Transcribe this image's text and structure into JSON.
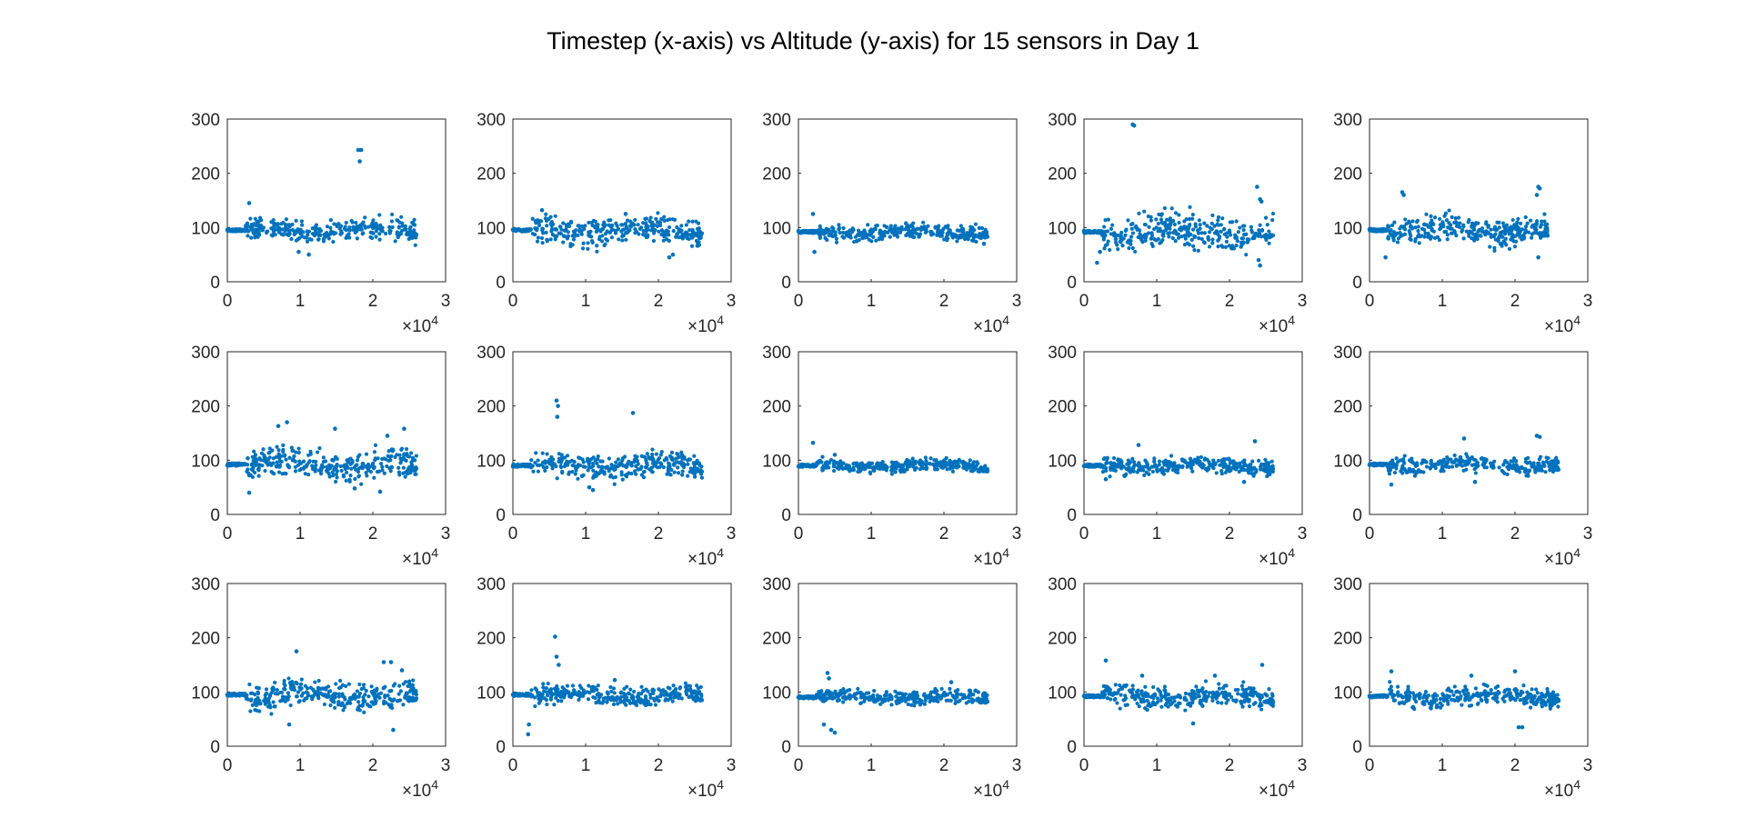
{
  "figure": {
    "title": "Timestep (x-axis) vs Altitude (y-axis) for 15 sensors in Day 1",
    "marker_color": "#0072BD",
    "axis_color": "#262626"
  },
  "chart_data": {
    "type": "scatter",
    "layout": "3x5 grid of subplots",
    "title": "Timestep (x-axis) vs Altitude (y-axis) for 15 sensors in Day 1",
    "grid": false,
    "legend": "none",
    "x_exponent_label": "×10^4",
    "xlim": [
      0,
      30000
    ],
    "ylim": [
      0,
      300
    ],
    "x_ticks": [
      0,
      1,
      2,
      3
    ],
    "y_ticks": [
      0,
      100,
      200,
      300
    ],
    "subplots": [
      {
        "x_end": 26000,
        "base": 95,
        "spread": 14,
        "outliers": [
          [
            18000,
            243
          ],
          [
            18400,
            243
          ],
          [
            18200,
            222
          ],
          [
            3000,
            145
          ],
          [
            9800,
            55
          ],
          [
            11200,
            50
          ]
        ]
      },
      {
        "x_end": 26000,
        "base": 95,
        "spread": 18,
        "outliers": [
          [
            4000,
            132
          ],
          [
            15500,
            125
          ],
          [
            22000,
            50
          ],
          [
            21500,
            45
          ]
        ]
      },
      {
        "x_end": 26000,
        "base": 92,
        "spread": 10,
        "outliers": [
          [
            2000,
            125
          ],
          [
            2200,
            55
          ],
          [
            25500,
            70
          ]
        ]
      },
      {
        "x_end": 26000,
        "base": 92,
        "spread": 22,
        "outliers": [
          [
            6700,
            290
          ],
          [
            6900,
            288
          ],
          [
            23800,
            175
          ],
          [
            24200,
            152
          ],
          [
            24400,
            148
          ],
          [
            24200,
            30
          ],
          [
            24000,
            40
          ],
          [
            1800,
            35
          ],
          [
            2200,
            55
          ]
        ]
      },
      {
        "x_end": 24500,
        "base": 95,
        "spread": 18,
        "outliers": [
          [
            4500,
            165
          ],
          [
            4700,
            160
          ],
          [
            23200,
            175
          ],
          [
            23400,
            172
          ],
          [
            23000,
            160
          ],
          [
            2200,
            45
          ],
          [
            23200,
            45
          ]
        ]
      },
      {
        "x_end": 26000,
        "base": 92,
        "spread": 20,
        "outliers": [
          [
            8200,
            170
          ],
          [
            7000,
            163
          ],
          [
            14800,
            158
          ],
          [
            22000,
            145
          ],
          [
            24300,
            158
          ],
          [
            3000,
            40
          ],
          [
            17500,
            48
          ],
          [
            21000,
            42
          ]
        ]
      },
      {
        "x_end": 26000,
        "base": 90,
        "spread": 16,
        "outliers": [
          [
            6000,
            210
          ],
          [
            6200,
            200
          ],
          [
            6100,
            180
          ],
          [
            16500,
            187
          ],
          [
            10500,
            50
          ],
          [
            11000,
            45
          ]
        ]
      },
      {
        "x_end": 26000,
        "base": 90,
        "spread": 8,
        "outliers": [
          [
            2000,
            132
          ],
          [
            5000,
            110
          ]
        ]
      },
      {
        "x_end": 26000,
        "base": 90,
        "spread": 11,
        "outliers": [
          [
            23500,
            135
          ],
          [
            7500,
            128
          ],
          [
            22000,
            60
          ],
          [
            3000,
            65
          ]
        ]
      },
      {
        "x_end": 26000,
        "base": 92,
        "spread": 11,
        "outliers": [
          [
            13000,
            140
          ],
          [
            23000,
            145
          ],
          [
            23400,
            143
          ],
          [
            3000,
            55
          ],
          [
            14500,
            60
          ]
        ]
      },
      {
        "x_end": 26000,
        "base": 95,
        "spread": 18,
        "outliers": [
          [
            9500,
            175
          ],
          [
            21500,
            155
          ],
          [
            22500,
            155
          ],
          [
            24000,
            140
          ],
          [
            8500,
            40
          ],
          [
            22800,
            30
          ]
        ]
      },
      {
        "x_end": 26000,
        "base": 95,
        "spread": 12,
        "outliers": [
          [
            5800,
            202
          ],
          [
            6000,
            165
          ],
          [
            6300,
            150
          ],
          [
            2100,
            22
          ],
          [
            2200,
            40
          ],
          [
            14000,
            122
          ]
        ]
      },
      {
        "x_end": 26000,
        "base": 90,
        "spread": 9,
        "outliers": [
          [
            4000,
            135
          ],
          [
            4200,
            125
          ],
          [
            4500,
            30
          ],
          [
            5000,
            25
          ],
          [
            3500,
            40
          ],
          [
            21000,
            118
          ]
        ]
      },
      {
        "x_end": 26000,
        "base": 92,
        "spread": 14,
        "outliers": [
          [
            3000,
            158
          ],
          [
            24500,
            150
          ],
          [
            15000,
            42
          ],
          [
            18000,
            130
          ],
          [
            8000,
            130
          ]
        ]
      },
      {
        "x_end": 26000,
        "base": 92,
        "spread": 13,
        "outliers": [
          [
            3000,
            138
          ],
          [
            20000,
            138
          ],
          [
            20500,
            35
          ],
          [
            21000,
            35
          ],
          [
            14000,
            130
          ]
        ]
      }
    ]
  }
}
